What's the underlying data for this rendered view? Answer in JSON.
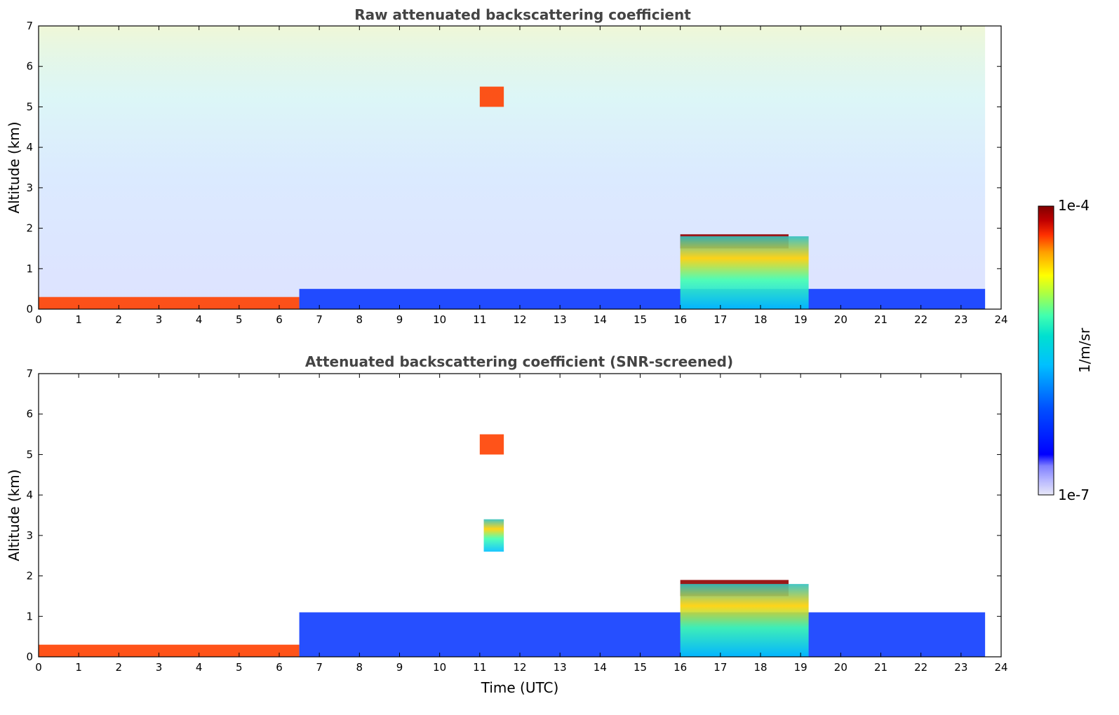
{
  "chart_data": [
    {
      "type": "heatmap",
      "title": "Raw attenuated backscattering coefficient",
      "xlabel": "",
      "ylabel": "Altitude (km)",
      "xlim": [
        0,
        24
      ],
      "ylim": [
        0,
        7
      ],
      "xticks": [
        "0",
        "1",
        "2",
        "3",
        "4",
        "5",
        "6",
        "7",
        "8",
        "9",
        "10",
        "11",
        "12",
        "13",
        "14",
        "15",
        "16",
        "17",
        "18",
        "19",
        "20",
        "21",
        "22",
        "23",
        "24"
      ],
      "yticks": [
        "0",
        "1",
        "2",
        "3",
        "4",
        "5",
        "6",
        "7"
      ],
      "x_units": "hours UTC",
      "y_units": "km",
      "data_extent_x": [
        0,
        23.6
      ],
      "features": [
        {
          "name": "surface-layer",
          "x": [
            0,
            6.5
          ],
          "y": [
            0,
            0.3
          ],
          "level": "high"
        },
        {
          "name": "boundary-layer",
          "x": [
            6.5,
            23.6
          ],
          "y": [
            0,
            0.5
          ],
          "level": "low"
        },
        {
          "name": "elevated-aerosol",
          "x": [
            11.0,
            11.6
          ],
          "y": [
            5.0,
            5.5
          ],
          "level": "high"
        },
        {
          "name": "cloud-top-layer",
          "x": [
            16.0,
            18.7
          ],
          "y": [
            1.5,
            1.85
          ],
          "level": "saturated"
        },
        {
          "name": "precipitation",
          "x": [
            16.0,
            19.2
          ],
          "y": [
            0,
            1.8
          ],
          "level": "medium"
        }
      ]
    },
    {
      "type": "heatmap",
      "title": "Attenuated backscattering coefficient (SNR-screened)",
      "xlabel": "Time (UTC)",
      "ylabel": "Altitude (km)",
      "xlim": [
        0,
        24
      ],
      "ylim": [
        0,
        7
      ],
      "xticks": [
        "0",
        "1",
        "2",
        "3",
        "4",
        "5",
        "6",
        "7",
        "8",
        "9",
        "10",
        "11",
        "12",
        "13",
        "14",
        "15",
        "16",
        "17",
        "18",
        "19",
        "20",
        "21",
        "22",
        "23",
        "24"
      ],
      "yticks": [
        "0",
        "1",
        "2",
        "3",
        "4",
        "5",
        "6",
        "7"
      ],
      "x_units": "hours UTC",
      "y_units": "km",
      "data_extent_x": [
        0,
        23.6
      ],
      "features": [
        {
          "name": "surface-layer",
          "x": [
            0,
            6.5
          ],
          "y": [
            0,
            0.3
          ],
          "level": "high"
        },
        {
          "name": "boundary-layer",
          "x": [
            6.5,
            23.6
          ],
          "y": [
            0,
            1.1
          ],
          "level": "low"
        },
        {
          "name": "elevated-aerosol",
          "x": [
            11.0,
            11.6
          ],
          "y": [
            5.0,
            5.5
          ],
          "level": "high"
        },
        {
          "name": "mid-feature",
          "x": [
            11.1,
            11.6
          ],
          "y": [
            2.6,
            3.4
          ],
          "level": "medium"
        },
        {
          "name": "cloud-top-layer",
          "x": [
            16.0,
            18.7
          ],
          "y": [
            1.5,
            1.9
          ],
          "level": "saturated"
        },
        {
          "name": "precipitation",
          "x": [
            16.0,
            19.2
          ],
          "y": [
            0,
            1.8
          ],
          "level": "medium"
        }
      ]
    }
  ],
  "colorbar": {
    "label": "1/m/sr",
    "max_label": "1e-4",
    "min_label": "1e-7",
    "scale": "log",
    "colors": [
      "#e8e8f8",
      "#b8b8ff",
      "#8080ff",
      "#0000ff",
      "#0050ff",
      "#00a0ff",
      "#00e0e0",
      "#40ffb0",
      "#b0ff40",
      "#ffff00",
      "#ffb000",
      "#ff6000",
      "#ff0000",
      "#b00000",
      "#800000"
    ]
  }
}
